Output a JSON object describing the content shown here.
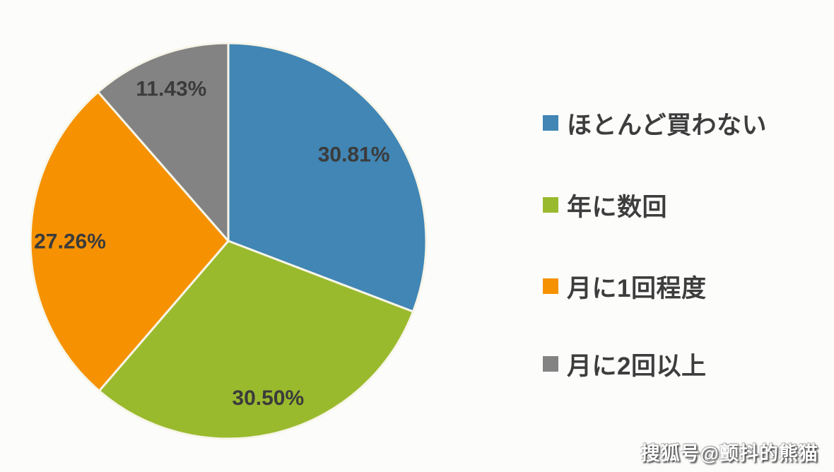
{
  "chart_data": {
    "type": "pie",
    "title": "",
    "direction": "clockwise",
    "start_angle_deg": 0,
    "legend_position": "right",
    "total_percent": 100,
    "slices": [
      {
        "label": "ほとんど買わない",
        "value": 30.81,
        "display": "30.81%",
        "color": "#4186B4"
      },
      {
        "label": "年に数回",
        "value": 30.5,
        "display": "30.50%",
        "color": "#9ABA2E"
      },
      {
        "label": "月に1回程度",
        "value": 27.26,
        "display": "27.26%",
        "color": "#F69202"
      },
      {
        "label": "月に2回以上",
        "value": 11.43,
        "display": "11.43%",
        "color": "#838383"
      }
    ],
    "separator_color": "#F7F5E8",
    "background_color": "#FCFCFB"
  },
  "watermark": {
    "text": "搜狐号@颤抖的熊猫"
  }
}
